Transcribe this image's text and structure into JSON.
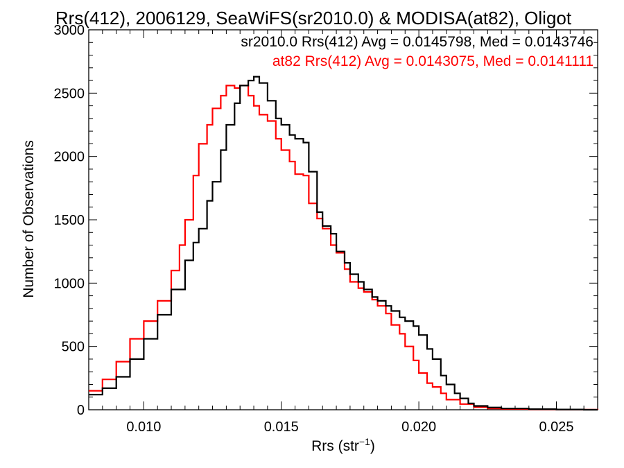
{
  "chart_data": {
    "type": "line",
    "title": "Rrs(412), 2006129, SeaWiFS(sr2010.0) & MODISA(at82), Oligot",
    "xlabel": "Rrs (str",
    "xlabel_sup": "−1",
    "xlabel_close": ")",
    "ylabel": "Number of Observations",
    "xlim": [
      0.008,
      0.0265
    ],
    "ylim": [
      0,
      3000
    ],
    "xticks": [
      0.01,
      0.015,
      0.02,
      0.025
    ],
    "xtick_labels": [
      "0.010",
      "0.015",
      "0.020",
      "0.025"
    ],
    "yticks": [
      0,
      500,
      1000,
      1500,
      2000,
      2500,
      3000
    ],
    "ytick_labels": [
      "0",
      "500",
      "1000",
      "1500",
      "2000",
      "2500",
      "3000"
    ],
    "legend_position": "top-right",
    "series": [
      {
        "name": "sr2010.0 Rrs(412) Avg = 0.0145798, Med = 0.0143746",
        "color": "#000000",
        "x": [
          0.008,
          0.0085,
          0.009,
          0.0095,
          0.01,
          0.0105,
          0.011,
          0.0115,
          0.0118,
          0.012,
          0.0123,
          0.0125,
          0.0128,
          0.013,
          0.0133,
          0.0135,
          0.0138,
          0.014,
          0.0142,
          0.0145,
          0.0148,
          0.015,
          0.0153,
          0.0155,
          0.0158,
          0.016,
          0.0163,
          0.0165,
          0.0168,
          0.017,
          0.0173,
          0.0175,
          0.0178,
          0.018,
          0.0183,
          0.0185,
          0.0188,
          0.019,
          0.0193,
          0.0195,
          0.0198,
          0.02,
          0.0203,
          0.0205,
          0.0208,
          0.021,
          0.0213,
          0.0215,
          0.0218,
          0.022,
          0.0225,
          0.023,
          0.024,
          0.025,
          0.026,
          0.0265
        ],
        "y": [
          120,
          170,
          260,
          400,
          560,
          750,
          950,
          1180,
          1320,
          1430,
          1650,
          1800,
          2050,
          2250,
          2420,
          2560,
          2600,
          2630,
          2580,
          2440,
          2300,
          2250,
          2170,
          2140,
          2110,
          1880,
          1560,
          1450,
          1390,
          1250,
          1160,
          1070,
          1010,
          950,
          890,
          860,
          820,
          780,
          730,
          700,
          660,
          590,
          480,
          400,
          270,
          200,
          130,
          90,
          50,
          30,
          18,
          10,
          5,
          2,
          0,
          0
        ]
      },
      {
        "name": "at82 Rrs(412) Avg = 0.0143075, Med = 0.0141111",
        "color": "#ff0000",
        "x": [
          0.008,
          0.0085,
          0.009,
          0.0095,
          0.01,
          0.0105,
          0.011,
          0.0113,
          0.0115,
          0.0118,
          0.012,
          0.0123,
          0.0125,
          0.0128,
          0.013,
          0.0133,
          0.0135,
          0.0138,
          0.014,
          0.0142,
          0.0145,
          0.0148,
          0.015,
          0.0153,
          0.0155,
          0.0158,
          0.016,
          0.0163,
          0.0165,
          0.0168,
          0.017,
          0.0173,
          0.0175,
          0.0178,
          0.018,
          0.0183,
          0.0185,
          0.0188,
          0.019,
          0.0193,
          0.0195,
          0.0198,
          0.02,
          0.0203,
          0.0205,
          0.0208,
          0.021,
          0.0215,
          0.022,
          0.0225,
          0.023,
          0.024,
          0.025,
          0.026,
          0.0265
        ],
        "y": [
          150,
          240,
          380,
          560,
          700,
          860,
          1100,
          1300,
          1500,
          1850,
          2100,
          2250,
          2380,
          2480,
          2560,
          2540,
          2560,
          2480,
          2400,
          2330,
          2280,
          2140,
          2050,
          1960,
          1860,
          1850,
          1630,
          1510,
          1430,
          1300,
          1240,
          1110,
          1010,
          960,
          930,
          870,
          820,
          760,
          670,
          600,
          500,
          390,
          290,
          210,
          180,
          130,
          80,
          45,
          20,
          10,
          6,
          3,
          2,
          1,
          0
        ]
      }
    ]
  }
}
